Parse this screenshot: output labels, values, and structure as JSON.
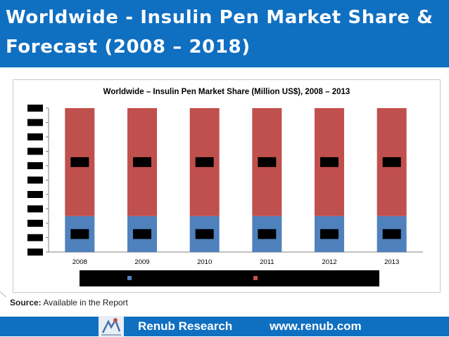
{
  "page": {
    "title_line1": "Worldwide - Insulin Pen Market Share &",
    "title_line2": "Forecast (2008 – 2018)",
    "source_label": "Source:",
    "source_text": "Available in the Report",
    "footer_company": "Renub Research",
    "footer_url": "www.renub.com"
  },
  "colors": {
    "brand": "#0f6fc1",
    "series_blue": "#4f81bd",
    "series_red": "#c0504d",
    "redaction": "#000000"
  },
  "chart_data": {
    "type": "bar",
    "stacked": true,
    "title": "Worldwide – Insulin Pen Market Share (Million US$), 2008 – 2013",
    "categories": [
      "2008",
      "2009",
      "2010",
      "2011",
      "2012",
      "2013"
    ],
    "series": [
      {
        "name": "",
        "values": [
          25,
          25,
          25,
          25,
          25,
          25
        ]
      },
      {
        "name": "",
        "values": [
          75,
          75,
          75,
          75,
          75,
          75
        ]
      }
    ],
    "ylim": [
      0,
      100
    ],
    "y_tick_count": 11,
    "y_tick_labels_redacted": true,
    "data_labels_redacted": true,
    "legend": {
      "position": "bottom",
      "labels_redacted": true
    },
    "grid": false,
    "xlabel": "",
    "ylabel": ""
  }
}
